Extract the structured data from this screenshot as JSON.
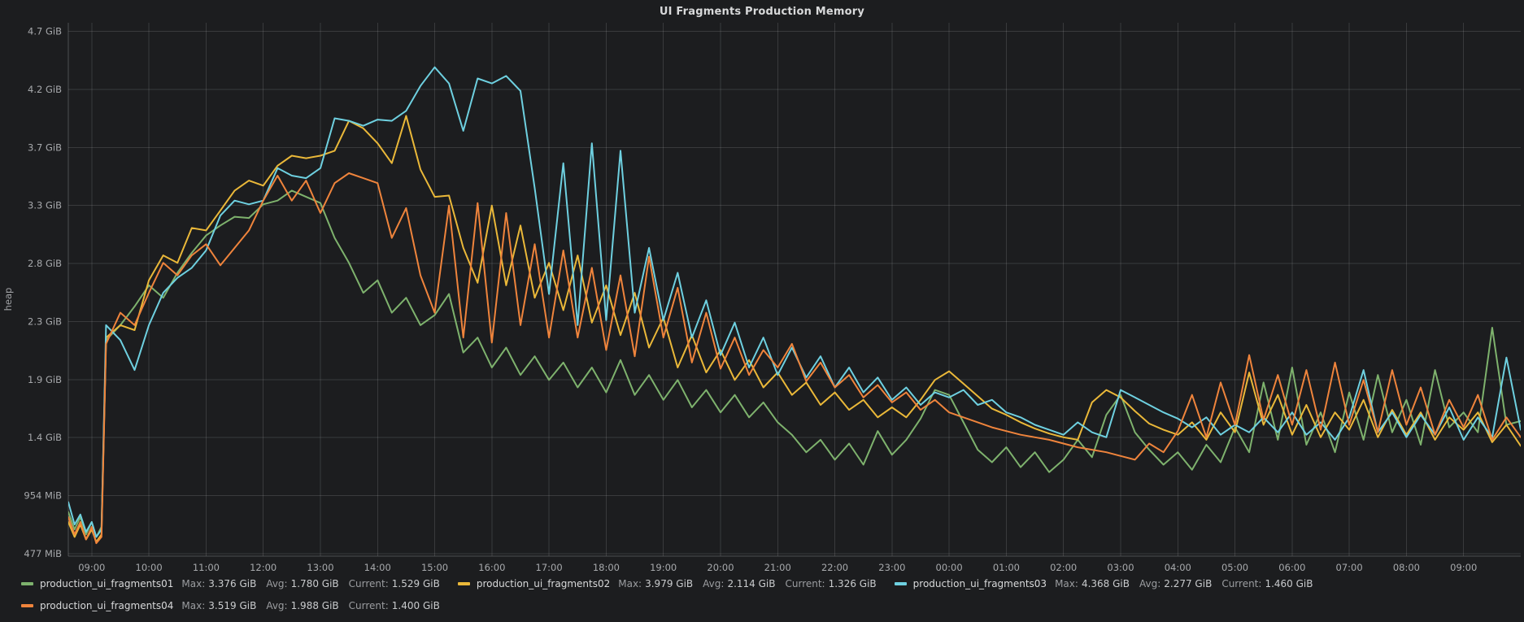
{
  "panel": {
    "title": "UI Fragments Production Memory"
  },
  "legend": {
    "stat_labels": {
      "max": "Max:",
      "avg": "Avg:",
      "current": "Current:"
    }
  },
  "chart_data": {
    "type": "line",
    "title": "UI Fragments Production Memory",
    "ylabel": "heap",
    "unit": "GiB",
    "grid": true,
    "legend_position": "bottom",
    "x_axis": {
      "tick_labels": [
        "09:00",
        "10:00",
        "11:00",
        "12:00",
        "13:00",
        "14:00",
        "15:00",
        "16:00",
        "17:00",
        "18:00",
        "19:00",
        "20:00",
        "21:00",
        "22:00",
        "23:00",
        "00:00",
        "01:00",
        "02:00",
        "03:00",
        "04:00",
        "05:00",
        "06:00",
        "07:00",
        "08:00",
        "09:00"
      ],
      "tick_hours": [
        0,
        1,
        2,
        3,
        4,
        5,
        6,
        7,
        8,
        9,
        10,
        11,
        12,
        13,
        14,
        15,
        16,
        17,
        18,
        19,
        20,
        21,
        22,
        23,
        24
      ],
      "range_hours": [
        -0.41,
        25.0
      ]
    },
    "y_axis": {
      "tick_labels": [
        "477 MiB",
        "954 MiB",
        "1.4 GiB",
        "1.9 GiB",
        "2.3 GiB",
        "2.8 GiB",
        "3.3 GiB",
        "3.7 GiB",
        "4.2 GiB",
        "4.7 GiB"
      ],
      "tick_values_gib": [
        0.4658,
        0.9316,
        1.3975,
        1.8633,
        2.3291,
        2.7949,
        3.2607,
        3.7266,
        4.1924,
        4.6582
      ],
      "range_gib": [
        0.446,
        4.727
      ]
    },
    "t_hours": [
      -0.41,
      -0.3,
      -0.2,
      -0.1,
      0,
      0.08,
      0.17,
      0.25,
      0.5,
      0.75,
      1,
      1.25,
      1.5,
      1.75,
      2,
      2.25,
      2.5,
      2.75,
      3,
      3.25,
      3.5,
      3.75,
      4,
      4.25,
      4.5,
      4.75,
      5,
      5.25,
      5.5,
      5.75,
      6,
      6.25,
      6.5,
      6.75,
      7,
      7.25,
      7.5,
      7.75,
      8,
      8.25,
      8.5,
      8.75,
      9,
      9.25,
      9.5,
      9.75,
      10,
      10.25,
      10.5,
      10.75,
      11,
      11.25,
      11.5,
      11.75,
      12,
      12.25,
      12.5,
      12.75,
      13,
      13.25,
      13.5,
      13.75,
      14,
      14.25,
      14.5,
      14.75,
      15,
      15.25,
      15.5,
      15.75,
      16,
      16.25,
      16.5,
      16.75,
      17,
      17.25,
      17.5,
      17.75,
      18,
      18.25,
      18.5,
      18.75,
      19,
      19.25,
      19.5,
      19.75,
      20,
      20.25,
      20.5,
      20.75,
      21,
      21.25,
      21.5,
      21.75,
      22,
      22.25,
      22.5,
      22.75,
      23,
      23.25,
      23.5,
      23.75,
      24,
      24.25,
      24.5,
      24.75,
      25
    ],
    "series": [
      {
        "name": "production_ui_fragments01",
        "color": "#7EB26D",
        "stats": {
          "max": "3.376 GiB",
          "avg": "1.780 GiB",
          "current": "1.529 GiB"
        },
        "values": [
          0.8,
          0.66,
          0.76,
          0.62,
          0.72,
          0.6,
          0.68,
          2.18,
          2.3,
          2.45,
          2.62,
          2.52,
          2.72,
          2.88,
          3.02,
          3.1,
          3.17,
          3.16,
          3.27,
          3.3,
          3.38,
          3.33,
          3.28,
          3.0,
          2.8,
          2.56,
          2.66,
          2.4,
          2.52,
          2.3,
          2.38,
          2.55,
          2.08,
          2.2,
          1.96,
          2.12,
          1.9,
          2.05,
          1.86,
          2.0,
          1.8,
          1.96,
          1.76,
          2.02,
          1.74,
          1.9,
          1.7,
          1.86,
          1.64,
          1.78,
          1.6,
          1.74,
          1.56,
          1.68,
          1.52,
          1.42,
          1.28,
          1.38,
          1.22,
          1.35,
          1.18,
          1.45,
          1.26,
          1.38,
          1.55,
          1.78,
          1.74,
          1.52,
          1.3,
          1.2,
          1.32,
          1.16,
          1.28,
          1.12,
          1.22,
          1.38,
          1.24,
          1.58,
          1.74,
          1.44,
          1.3,
          1.18,
          1.28,
          1.14,
          1.34,
          1.2,
          1.48,
          1.28,
          1.84,
          1.38,
          1.96,
          1.34,
          1.6,
          1.28,
          1.76,
          1.38,
          1.9,
          1.44,
          1.7,
          1.34,
          1.94,
          1.48,
          1.6,
          1.44,
          2.28,
          1.5,
          1.53
        ]
      },
      {
        "name": "production_ui_fragments02",
        "color": "#EAB839",
        "stats": {
          "max": "3.979 GiB",
          "avg": "2.114 GiB",
          "current": "1.326 GiB"
        },
        "values": [
          0.72,
          0.6,
          0.7,
          0.58,
          0.66,
          0.56,
          0.62,
          2.2,
          2.3,
          2.26,
          2.66,
          2.86,
          2.8,
          3.08,
          3.06,
          3.22,
          3.38,
          3.46,
          3.42,
          3.58,
          3.66,
          3.64,
          3.66,
          3.7,
          3.94,
          3.88,
          3.76,
          3.6,
          3.98,
          3.55,
          3.33,
          3.34,
          2.92,
          2.64,
          3.26,
          2.62,
          3.1,
          2.52,
          2.8,
          2.42,
          2.86,
          2.32,
          2.62,
          2.22,
          2.56,
          2.12,
          2.36,
          1.96,
          2.22,
          1.92,
          2.1,
          1.86,
          2.02,
          1.8,
          1.92,
          1.74,
          1.84,
          1.66,
          1.76,
          1.62,
          1.7,
          1.56,
          1.64,
          1.56,
          1.7,
          1.86,
          1.93,
          1.83,
          1.73,
          1.63,
          1.58,
          1.52,
          1.47,
          1.43,
          1.4,
          1.38,
          1.68,
          1.78,
          1.72,
          1.61,
          1.51,
          1.46,
          1.42,
          1.52,
          1.38,
          1.6,
          1.44,
          1.92,
          1.5,
          1.74,
          1.42,
          1.66,
          1.4,
          1.6,
          1.46,
          1.7,
          1.4,
          1.62,
          1.42,
          1.6,
          1.38,
          1.56,
          1.46,
          1.6,
          1.36,
          1.5,
          1.33
        ]
      },
      {
        "name": "production_ui_fragments03",
        "color": "#6ED0E0",
        "stats": {
          "max": "4.368 GiB",
          "avg": "2.277 GiB",
          "current": "1.460 GiB"
        },
        "values": [
          0.88,
          0.7,
          0.78,
          0.64,
          0.72,
          0.6,
          0.66,
          2.3,
          2.18,
          1.94,
          2.3,
          2.56,
          2.68,
          2.76,
          2.9,
          3.18,
          3.3,
          3.27,
          3.3,
          3.56,
          3.5,
          3.48,
          3.56,
          3.96,
          3.94,
          3.9,
          3.95,
          3.94,
          4.02,
          4.22,
          4.37,
          4.24,
          3.86,
          4.28,
          4.24,
          4.3,
          4.18,
          3.4,
          2.55,
          3.6,
          2.3,
          3.76,
          2.34,
          3.7,
          2.4,
          2.92,
          2.34,
          2.72,
          2.2,
          2.5,
          2.06,
          2.32,
          1.96,
          2.2,
          1.9,
          2.12,
          1.88,
          2.05,
          1.8,
          1.96,
          1.76,
          1.88,
          1.7,
          1.8,
          1.66,
          1.76,
          1.72,
          1.78,
          1.66,
          1.7,
          1.6,
          1.56,
          1.5,
          1.46,
          1.42,
          1.52,
          1.44,
          1.4,
          1.78,
          1.72,
          1.66,
          1.6,
          1.55,
          1.48,
          1.56,
          1.42,
          1.5,
          1.44,
          1.56,
          1.44,
          1.6,
          1.42,
          1.52,
          1.38,
          1.56,
          1.94,
          1.44,
          1.6,
          1.4,
          1.58,
          1.42,
          1.64,
          1.38,
          1.56,
          1.4,
          2.04,
          1.46
        ]
      },
      {
        "name": "production_ui_fragments04",
        "color": "#EF843C",
        "stats": {
          "max": "3.519 GiB",
          "avg": "1.988 GiB",
          "current": "1.400 GiB"
        },
        "values": [
          0.76,
          0.62,
          0.72,
          0.58,
          0.68,
          0.55,
          0.6,
          2.15,
          2.4,
          2.3,
          2.56,
          2.8,
          2.7,
          2.86,
          2.95,
          2.78,
          2.92,
          3.06,
          3.3,
          3.5,
          3.3,
          3.46,
          3.2,
          3.44,
          3.52,
          3.48,
          3.44,
          3.0,
          3.24,
          2.7,
          2.4,
          3.26,
          2.2,
          3.28,
          2.16,
          3.2,
          2.3,
          2.95,
          2.2,
          2.9,
          2.2,
          2.76,
          2.1,
          2.7,
          2.05,
          2.85,
          2.2,
          2.6,
          2.0,
          2.4,
          1.95,
          2.2,
          1.9,
          2.1,
          1.96,
          2.15,
          1.85,
          2.0,
          1.8,
          1.9,
          1.72,
          1.82,
          1.68,
          1.76,
          1.62,
          1.7,
          1.6,
          1.56,
          1.52,
          1.48,
          1.45,
          1.42,
          1.4,
          1.38,
          1.35,
          1.32,
          1.3,
          1.28,
          1.25,
          1.22,
          1.35,
          1.28,
          1.45,
          1.74,
          1.4,
          1.84,
          1.5,
          2.06,
          1.54,
          1.9,
          1.5,
          1.94,
          1.46,
          2.0,
          1.5,
          1.86,
          1.44,
          1.94,
          1.5,
          1.8,
          1.42,
          1.7,
          1.48,
          1.74,
          1.38,
          1.56,
          1.4
        ]
      }
    ]
  }
}
